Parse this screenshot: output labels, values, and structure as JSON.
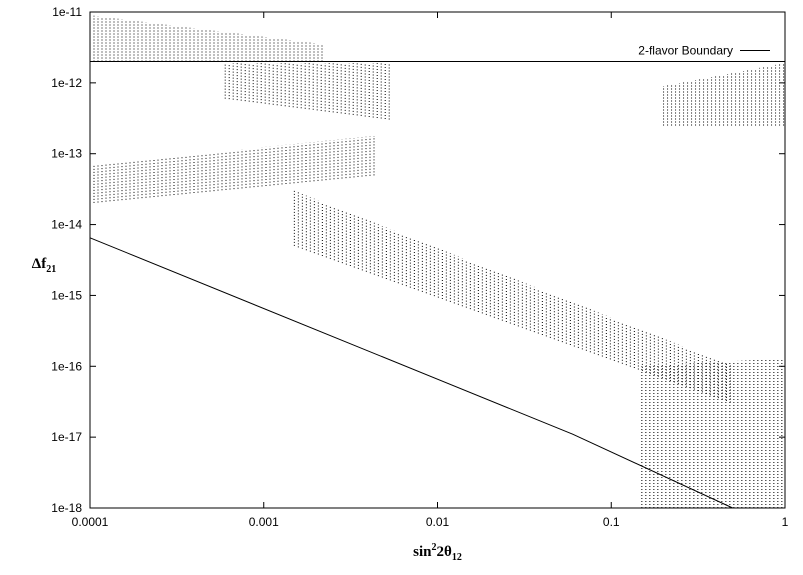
{
  "chart_data": {
    "type": "scatter",
    "title": "",
    "xlabel": {
      "base": "sin",
      "sup": "2",
      "mid": "2θ",
      "sub": "12"
    },
    "ylabel": {
      "base": "Δf",
      "sub": "21"
    },
    "x_scale": "log",
    "y_scale": "log",
    "xlim": [
      0.0001,
      1
    ],
    "ylim": [
      1e-18,
      1e-11
    ],
    "x_ticks": [
      {
        "value": 0.0001,
        "label": "0.0001"
      },
      {
        "value": 0.001,
        "label": "0.001"
      },
      {
        "value": 0.01,
        "label": "0.01"
      },
      {
        "value": 0.1,
        "label": "0.1"
      },
      {
        "value": 1,
        "label": "1"
      }
    ],
    "y_ticks": [
      {
        "value": 1e-11,
        "label": "1e-11"
      },
      {
        "value": 1e-12,
        "label": "1e-12"
      },
      {
        "value": 1e-13,
        "label": "1e-13"
      },
      {
        "value": 1e-14,
        "label": "1e-14"
      },
      {
        "value": 1e-15,
        "label": "1e-15"
      },
      {
        "value": 1e-16,
        "label": "1e-16"
      },
      {
        "value": 1e-17,
        "label": "1e-17"
      },
      {
        "value": 1e-18,
        "label": "1e-18"
      }
    ],
    "grid": false,
    "legend_position": "top-right",
    "series": [
      {
        "name": "2-flavor Boundary",
        "kind": "line",
        "points": [
          [
            0.0001,
            2e-12
          ],
          [
            1,
            2e-12
          ]
        ]
      },
      {
        "kind": "line",
        "points": [
          [
            0.0001,
            6.5e-15
          ],
          [
            0.06,
            1.1e-17
          ],
          [
            0.5,
            1e-18
          ]
        ]
      },
      {
        "kind": "scatter-region",
        "regions": [
          {
            "x": [
              0.0001,
              0.0022
            ],
            "y_low": [
              2e-12,
              2e-12
            ],
            "y_high": [
              9e-12,
              3.5e-12
            ]
          },
          {
            "x": [
              0.0006,
              0.0055
            ],
            "y_low": [
              6e-13,
              3e-13
            ],
            "y_high": [
              1.9e-12,
              1.9e-12
            ]
          },
          {
            "x": [
              0.2,
              1
            ],
            "y_low": [
              2.5e-13,
              2.5e-13
            ],
            "y_high": [
              9e-13,
              1.9e-12
            ]
          },
          {
            "x": [
              0.0001,
              0.0045
            ],
            "y_low": [
              2e-14,
              5e-14
            ],
            "y_high": [
              7e-14,
              1.8e-13
            ]
          },
          {
            "x": [
              0.0015,
              0.5
            ],
            "y_low": [
              5e-15,
              3e-17
            ],
            "y_high": [
              3e-14,
              1e-16
            ]
          },
          {
            "x": [
              0.15,
              1
            ],
            "y_low": [
              1e-18,
              1e-18
            ],
            "y_high": [
              1e-16,
              1.3e-16
            ]
          }
        ]
      }
    ]
  }
}
